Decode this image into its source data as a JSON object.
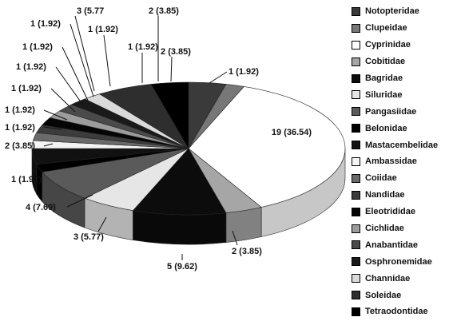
{
  "chart_data": {
    "type": "pie",
    "title": "",
    "categories": [
      "Notopteridae",
      "Clupeidae",
      "Cyprinidae",
      "Cobitidae",
      "Bagridae",
      "Siluridae",
      "Pangasiidae",
      "Belonidae",
      "Mastacembelidae",
      "Ambassidae",
      "Coiidae",
      "Nandidae",
      "Eleotrididae",
      "Cichlidae",
      "Anabantidae",
      "Osphronemidae",
      "Channidae",
      "Soleidae",
      "Tetraodontidae"
    ],
    "values": [
      2,
      1,
      19,
      2,
      5,
      3,
      4,
      1,
      2,
      1,
      1,
      1,
      1,
      1,
      1,
      1,
      1,
      3,
      2
    ],
    "percent": [
      3.85,
      1.92,
      36.54,
      3.85,
      9.62,
      5.77,
      7.69,
      1.92,
      3.85,
      1.92,
      1.92,
      1.92,
      1.92,
      1.92,
      1.92,
      1.92,
      1.92,
      5.77,
      3.85
    ],
    "data_labels": [
      "2 (3.85)",
      "1 (1.92)",
      "19 (36.54)",
      "2 (3.85)",
      "5 (9.62)",
      "3 (5.77)",
      "4 (7.69)",
      "1 (1.92)",
      "2 (3.85)",
      "1 (1.92)",
      "1 (1.92)",
      "1 (1.92)",
      "1 (1.92)",
      "1 (1.92)",
      "1 (1.92)",
      "1 (1.92)",
      "1 (1.92)",
      "3 (5.77",
      "2 (3.85)"
    ],
    "colors": [
      "#3a3a3a",
      "#777777",
      "#ffffff",
      "#a6a6a6",
      "#0c0c0c",
      "#e6e6e6",
      "#5a5a5a",
      "#000000",
      "#111111",
      "#f4f4f4",
      "#6a6a6a",
      "#3c3c3c",
      "#050505",
      "#9c9c9c",
      "#4a4a4a",
      "#1a1a1a",
      "#dadada",
      "#2e2e2e",
      "#000000"
    ],
    "legend_position": "right",
    "style": "3d-pie"
  }
}
